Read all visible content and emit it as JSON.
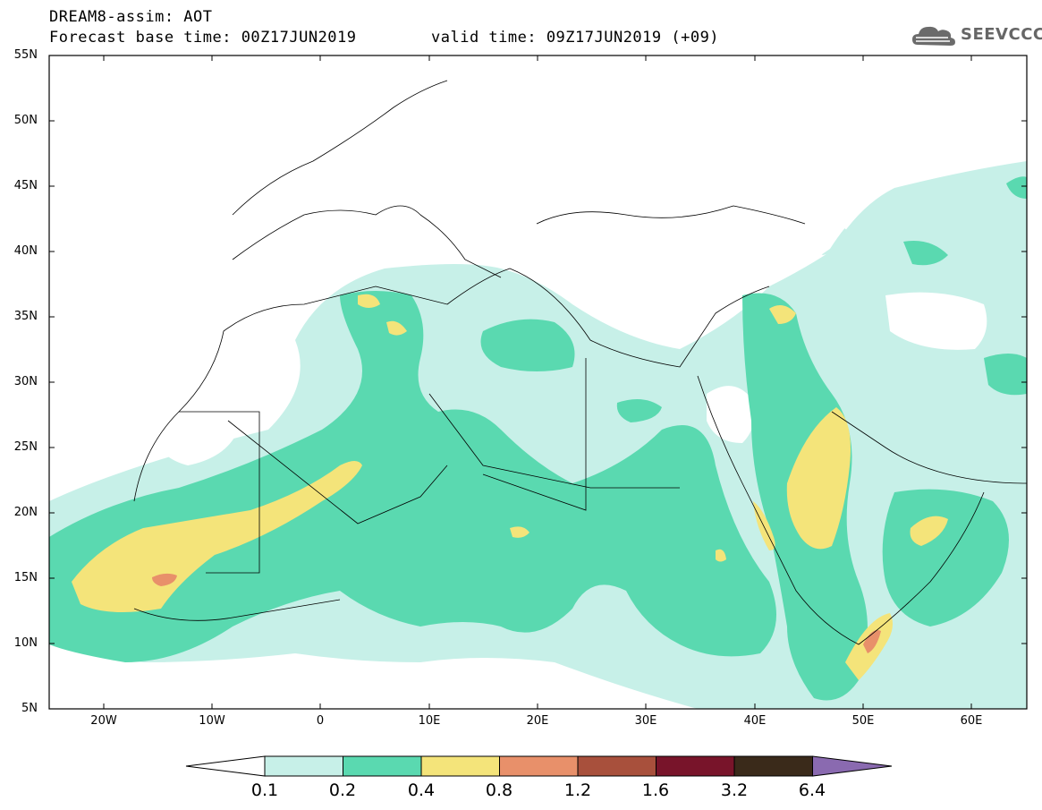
{
  "header": {
    "title": "DREAM8-assim: AOT",
    "base_time": "Forecast base time: 00Z17JUN2019",
    "valid_time": "valid time: 09Z17JUN2019 (+09)"
  },
  "logo": {
    "text": "SEEVCCC",
    "icon": "cloud-logo-icon"
  },
  "map": {
    "lat_labels": [
      "55N",
      "50N",
      "45N",
      "40N",
      "35N",
      "30N",
      "25N",
      "20N",
      "15N",
      "10N",
      "5N"
    ],
    "lon_labels": [
      "20W",
      "10W",
      "0",
      "10E",
      "20E",
      "30E",
      "40E",
      "50E",
      "60E"
    ],
    "lat_range": [
      5,
      55
    ],
    "lon_range": [
      -25,
      65
    ]
  },
  "legend": {
    "levels": [
      "0.1",
      "0.2",
      "0.4",
      "0.8",
      "1.2",
      "1.6",
      "3.2",
      "6.4"
    ],
    "colors": [
      "#ffffff",
      "#c7f0e8",
      "#5ad9b0",
      "#f4e47a",
      "#e8906a",
      "#a8503c",
      "#78142a",
      "#3a2a1a",
      "#8a6ab0"
    ]
  }
}
